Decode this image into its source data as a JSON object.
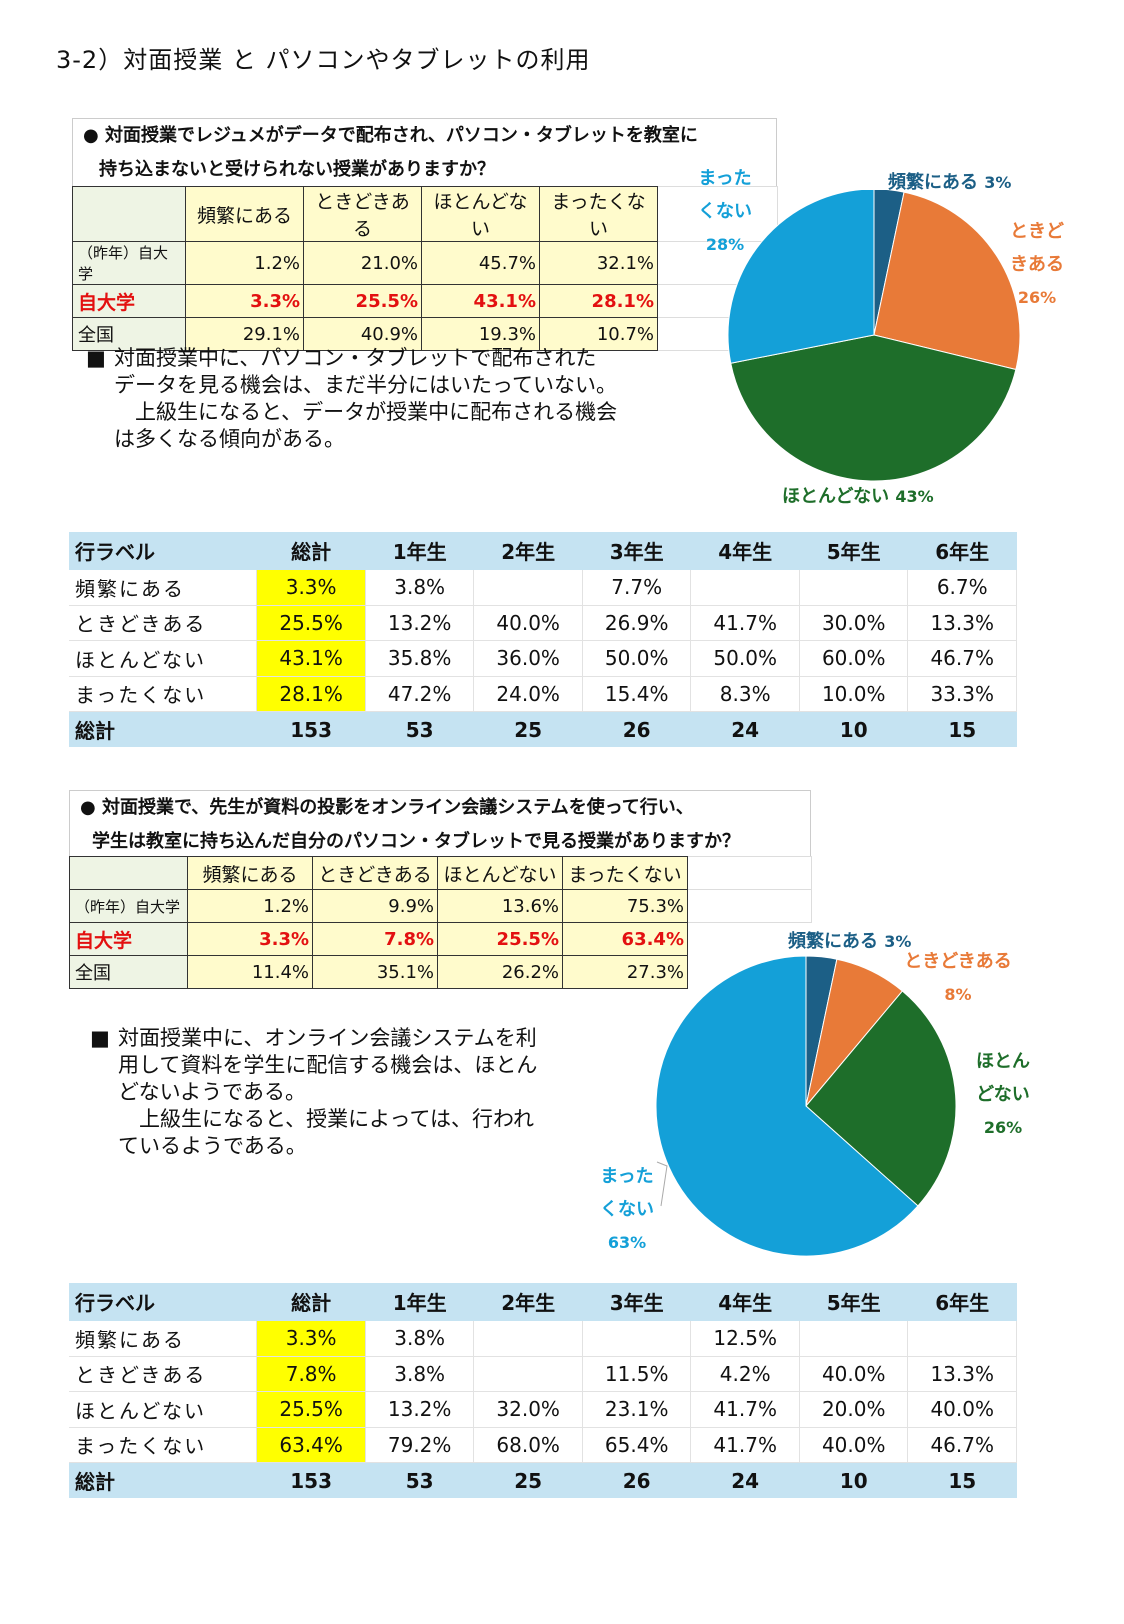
{
  "page_title": "3-2）対面授業 と パソコンやタブレットの利用",
  "colors": {
    "frequent": "#1c5f86",
    "sometimes": "#e87a38",
    "rarely": "#1e6e2a",
    "never": "#14a0d8",
    "highlight": "#ffff00",
    "ours_text": "#e31010"
  },
  "q1": {
    "line1": "● 対面授業でレジュメがデータで配布され、パソコン・タブレットを教室に",
    "line2": "持ち込まないと受けられない授業がありますか？",
    "cols": [
      "頻繁にある",
      "ときどきある",
      "ほとんどない",
      "まったくない"
    ],
    "rows": [
      {
        "label": "（昨年）自大学",
        "values": [
          "1.2%",
          "21.0%",
          "45.7%",
          "32.1%"
        ]
      },
      {
        "label": "自大学",
        "values": [
          "3.3%",
          "25.5%",
          "43.1%",
          "28.1%"
        ]
      },
      {
        "label": "全国",
        "values": [
          "29.1%",
          "40.9%",
          "19.3%",
          "10.7%"
        ]
      }
    ],
    "note": {
      "bullet": "■",
      "lines": [
        "対面授業中に、パソコン・タブレットで配布された",
        "データを見る機会は、まだ半分にはいたっていない。",
        "　上級生になると、データが授業中に配布される機会",
        "は多くなる傾向がある。"
      ]
    },
    "pie": {
      "slices": [
        {
          "key": "frequent",
          "value": 3.3
        },
        {
          "key": "sometimes",
          "value": 25.5
        },
        {
          "key": "rarely",
          "value": 43.1
        },
        {
          "key": "never",
          "value": 28.1
        }
      ],
      "labels": {
        "frequent": {
          "text": "頻繁にある",
          "pct": "3%"
        },
        "sometimes": {
          "lines": [
            "ときど",
            "きある"
          ],
          "pct": "26%"
        },
        "rarely": {
          "text": "ほとんどない",
          "pct": "43%"
        },
        "never": {
          "lines": [
            "まった",
            "くない"
          ],
          "pct": "28%"
        }
      }
    },
    "grade_table": {
      "headers": [
        "行ラベル",
        "総計",
        "1年生",
        "2年生",
        "3年生",
        "4年生",
        "5年生",
        "6年生"
      ],
      "rows": [
        {
          "label": "頻繁にある",
          "values": [
            "3.3%",
            "3.8%",
            "",
            "7.7%",
            "",
            "",
            "6.7%"
          ]
        },
        {
          "label": "ときどきある",
          "values": [
            "25.5%",
            "13.2%",
            "40.0%",
            "26.9%",
            "41.7%",
            "30.0%",
            "13.3%"
          ]
        },
        {
          "label": "ほとんどない",
          "values": [
            "43.1%",
            "35.8%",
            "36.0%",
            "50.0%",
            "50.0%",
            "60.0%",
            "46.7%"
          ]
        },
        {
          "label": "まったくない",
          "values": [
            "28.1%",
            "47.2%",
            "24.0%",
            "15.4%",
            "8.3%",
            "10.0%",
            "33.3%"
          ]
        }
      ],
      "total": {
        "label": "総計",
        "values": [
          "153",
          "53",
          "25",
          "26",
          "24",
          "10",
          "15"
        ]
      }
    }
  },
  "q2": {
    "line1": "● 対面授業で、先生が資料の投影をオンライン会議システムを使って行い、",
    "line2": "学生は教室に持ち込んだ自分のパソコン・タブレットで見る授業がありますか？",
    "cols": [
      "頻繁にある",
      "ときどきある",
      "ほとんどない",
      "まったくない"
    ],
    "rows": [
      {
        "label": "（昨年）自大学",
        "values": [
          "1.2%",
          "9.9%",
          "13.6%",
          "75.3%"
        ]
      },
      {
        "label": "自大学",
        "values": [
          "3.3%",
          "7.8%",
          "25.5%",
          "63.4%"
        ]
      },
      {
        "label": "全国",
        "values": [
          "11.4%",
          "35.1%",
          "26.2%",
          "27.3%"
        ]
      }
    ],
    "note": {
      "bullet": "■",
      "lines": [
        "対面授業中に、オンライン会議システムを利",
        "用して資料を学生に配信する機会は、ほとん",
        "どないようである。",
        "　上級生になると、授業によっては、行われ",
        "ているようである。"
      ]
    },
    "pie": {
      "slices": [
        {
          "key": "frequent",
          "value": 3.3
        },
        {
          "key": "sometimes",
          "value": 7.8
        },
        {
          "key": "rarely",
          "value": 25.5
        },
        {
          "key": "never",
          "value": 63.4
        }
      ],
      "labels": {
        "frequent": {
          "text": "頻繁にある",
          "pct": "3%"
        },
        "sometimes": {
          "text": "ときどきある",
          "pct": "8%"
        },
        "rarely": {
          "lines": [
            "ほとん",
            "どない"
          ],
          "pct": "26%"
        },
        "never": {
          "lines": [
            "まった",
            "くない"
          ],
          "pct": "63%"
        }
      }
    },
    "grade_table": {
      "headers": [
        "行ラベル",
        "総計",
        "1年生",
        "2年生",
        "3年生",
        "4年生",
        "5年生",
        "6年生"
      ],
      "rows": [
        {
          "label": "頻繁にある",
          "values": [
            "3.3%",
            "3.8%",
            "",
            "",
            "12.5%",
            "",
            ""
          ]
        },
        {
          "label": "ときどきある",
          "values": [
            "7.8%",
            "3.8%",
            "",
            "11.5%",
            "4.2%",
            "40.0%",
            "13.3%"
          ]
        },
        {
          "label": "ほとんどない",
          "values": [
            "25.5%",
            "13.2%",
            "32.0%",
            "23.1%",
            "41.7%",
            "20.0%",
            "40.0%"
          ]
        },
        {
          "label": "まったくない",
          "values": [
            "63.4%",
            "79.2%",
            "68.0%",
            "65.4%",
            "41.7%",
            "40.0%",
            "46.7%"
          ]
        }
      ],
      "total": {
        "label": "総計",
        "values": [
          "153",
          "53",
          "25",
          "26",
          "24",
          "10",
          "15"
        ]
      }
    }
  }
}
